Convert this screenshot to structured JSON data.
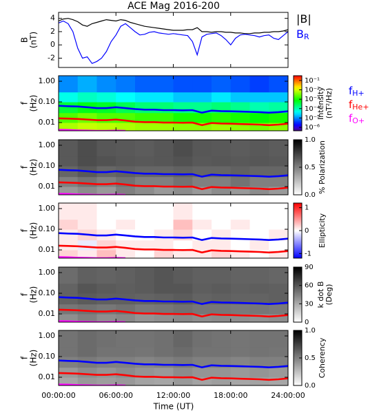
{
  "chart_data": {
    "title": "ACE Mag 2016-200",
    "xlabel": "Time (UT)",
    "xlim": [
      0,
      24
    ],
    "xticks": [
      {
        "value": 0,
        "label": "00:00:00"
      },
      {
        "value": 6,
        "label": "06:00:00"
      },
      {
        "value": 12,
        "label": "12:00:00"
      },
      {
        "value": 18,
        "label": "18:00:00"
      },
      {
        "value": 24,
        "label": "24:00:00"
      }
    ],
    "freq_lines": {
      "x": [
        0,
        1,
        2,
        3,
        4,
        5,
        6,
        7,
        8,
        9,
        10,
        11,
        12,
        13,
        14,
        15,
        16,
        17,
        18,
        19,
        20,
        21,
        22,
        23,
        24
      ],
      "series": [
        {
          "name": "f",
          "subscript": "H+",
          "color": "#0000ff",
          "values": [
            0.065,
            0.062,
            0.06,
            0.055,
            0.05,
            0.05,
            0.055,
            0.05,
            0.045,
            0.042,
            0.042,
            0.04,
            0.04,
            0.039,
            0.04,
            0.03,
            0.038,
            0.036,
            0.035,
            0.034,
            0.033,
            0.032,
            0.03,
            0.032,
            0.035
          ]
        },
        {
          "name": "f",
          "subscript": "He+",
          "color": "#ff0000",
          "values": [
            0.016,
            0.0155,
            0.015,
            0.014,
            0.013,
            0.013,
            0.014,
            0.0125,
            0.011,
            0.0105,
            0.0105,
            0.01,
            0.01,
            0.0098,
            0.01,
            0.0075,
            0.0095,
            0.009,
            0.0088,
            0.0085,
            0.0082,
            0.008,
            0.0075,
            0.008,
            0.0088
          ]
        },
        {
          "name": "f",
          "subscript": "O+",
          "color": "#ff00ff",
          "values": [
            0.0045,
            0.0044,
            0.0042,
            0.0041,
            0.004,
            0.004,
            0.0041,
            0.004,
            null,
            null,
            null,
            null,
            null,
            null,
            null,
            null,
            null,
            null,
            null,
            null,
            null,
            null,
            null,
            null,
            null
          ]
        }
      ]
    },
    "panels": [
      {
        "type": "line",
        "ylabel": [
          "B",
          "(nT)"
        ],
        "ylim": [
          -3.4,
          4.9
        ],
        "yticks": [
          -2,
          0,
          2,
          4
        ],
        "x": [
          0,
          0.5,
          1,
          1.5,
          2,
          2.5,
          3,
          3.5,
          4,
          4.5,
          5,
          5.5,
          6,
          6.5,
          7,
          7.5,
          8,
          8.5,
          9,
          9.5,
          10,
          10.5,
          11,
          11.5,
          12,
          12.5,
          13,
          13.5,
          14,
          14.5,
          15,
          15.5,
          16,
          16.5,
          17,
          17.5,
          18,
          18.5,
          19,
          19.5,
          20,
          20.5,
          21,
          21.5,
          22,
          22.5,
          23,
          23.5,
          24
        ],
        "series": [
          {
            "name": "|B|",
            "color": "#000000",
            "values": [
              3.6,
              3.9,
              4.0,
              3.8,
              3.5,
              3.0,
              2.8,
              3.2,
              3.4,
              3.6,
              3.8,
              3.7,
              3.6,
              3.8,
              3.7,
              3.4,
              3.2,
              3.0,
              2.8,
              2.7,
              2.6,
              2.5,
              2.4,
              2.3,
              2.2,
              2.2,
              2.2,
              2.3,
              2.3,
              2.6,
              2.0,
              2.0,
              1.9,
              2.0,
              2.0,
              1.9,
              1.9,
              1.8,
              1.8,
              1.7,
              1.7,
              1.8,
              1.8,
              1.9,
              1.9,
              2.0,
              2.0,
              2.1,
              2.3
            ]
          },
          {
            "name": "B",
            "subscript": "R",
            "color": "#0000ff",
            "values": [
              3.3,
              3.6,
              3.2,
              2.0,
              -0.5,
              -2.0,
              -1.8,
              -2.8,
              -2.5,
              -2.0,
              -1.0,
              0.5,
              1.5,
              2.8,
              3.2,
              2.6,
              2.0,
              1.5,
              1.6,
              1.9,
              2.0,
              1.8,
              1.7,
              1.6,
              1.7,
              1.6,
              1.5,
              1.4,
              0.5,
              -1.5,
              1.2,
              1.6,
              1.7,
              1.8,
              1.4,
              0.8,
              0.0,
              1.0,
              1.5,
              1.6,
              1.5,
              1.4,
              1.2,
              1.4,
              1.5,
              1.0,
              0.8,
              1.4,
              2.0
            ]
          }
        ]
      },
      {
        "type": "spectrogram",
        "ylabel": [
          "f",
          "(Hz)"
        ],
        "ylim": [
          0.004,
          1.85
        ],
        "log_y": true,
        "yticks": [
          0.01,
          {
            "value": 0.1,
            "label": "0.10"
          },
          {
            "value": 1,
            "label": "1.00"
          }
        ],
        "time_bins": [
          0,
          2,
          4,
          6,
          8,
          10,
          12,
          14,
          16,
          18,
          20,
          22,
          24
        ],
        "freq_bins": [
          0.004,
          0.01,
          0.03,
          0.1,
          0.3,
          1.85
        ],
        "colormap": "rainbow",
        "log_z": true,
        "zlim": [
          4.3e-07,
          0.32
        ],
        "zlabel": [
          "Intensity",
          "(nT²/Hz)"
        ],
        "zticks": [
          {
            "value": 1e-06,
            "label": "10⁻⁶"
          },
          {
            "value": 1e-05,
            "label": "10⁻⁵"
          },
          {
            "value": 0.0001,
            "label": "10⁻⁴"
          },
          {
            "value": 0.001,
            "label": "10⁻³"
          },
          {
            "value": 0.01,
            "label": "10⁻²"
          },
          {
            "value": 0.1,
            "label": "10⁻¹"
          }
        ],
        "show_legend": true,
        "z": [
          [
            0.006,
            0.008,
            0.007,
            0.006,
            0.005,
            0.005,
            0.004,
            0.004,
            0.005,
            0.004,
            0.003,
            0.004
          ],
          [
            0.002,
            0.003,
            0.002,
            0.002,
            0.0015,
            0.0015,
            0.001,
            0.001,
            0.0012,
            0.001,
            0.0008,
            0.001
          ],
          [
            0.0004,
            0.0006,
            0.0005,
            0.0003,
            0.0002,
            0.0002,
            0.00015,
            0.00015,
            0.0002,
            0.00015,
            0.0001,
            0.00012
          ],
          [
            5e-05,
            8e-05,
            6e-05,
            4e-05,
            3e-05,
            3e-05,
            2e-05,
            2e-05,
            3e-05,
            2e-05,
            2e-05,
            2e-05
          ],
          [
            1e-05,
            1.5e-05,
            1e-05,
            8e-06,
            6e-06,
            6e-06,
            5e-06,
            5e-06,
            6e-06,
            5e-06,
            4e-06,
            5e-06
          ]
        ]
      },
      {
        "type": "spectrogram",
        "ylabel": [
          "f",
          "(Hz)"
        ],
        "ylim": [
          0.004,
          1.85
        ],
        "log_y": true,
        "yticks": [
          0.01,
          {
            "value": 0.1,
            "label": "0.10"
          },
          {
            "value": 1,
            "label": "1.00"
          }
        ],
        "time_bins": [
          0,
          2,
          4,
          6,
          8,
          10,
          12,
          14,
          16,
          18,
          20,
          22,
          24
        ],
        "freq_bins": [
          0.004,
          0.01,
          0.03,
          0.1,
          0.3,
          1.85
        ],
        "colormap": "gray",
        "zlim": [
          0,
          1
        ],
        "zlabel": [
          "% Polarization"
        ],
        "zticks": [
          {
            "value": 0,
            "label": "0.0"
          },
          0.5,
          {
            "value": 1,
            "label": "1.0"
          }
        ],
        "z": [
          [
            0.4,
            0.45,
            0.4,
            0.5,
            0.45,
            0.4,
            0.45,
            0.4,
            0.45,
            0.4,
            0.45,
            0.4
          ],
          [
            0.5,
            0.55,
            0.5,
            0.55,
            0.5,
            0.5,
            0.55,
            0.5,
            0.5,
            0.55,
            0.5,
            0.5
          ],
          [
            0.6,
            0.65,
            0.6,
            0.62,
            0.6,
            0.6,
            0.62,
            0.6,
            0.6,
            0.62,
            0.6,
            0.6
          ],
          [
            0.65,
            0.7,
            0.68,
            0.66,
            0.65,
            0.66,
            0.68,
            0.65,
            0.66,
            0.65,
            0.66,
            0.65
          ],
          [
            0.65,
            0.7,
            0.66,
            0.65,
            0.64,
            0.66,
            0.7,
            0.66,
            0.65,
            0.64,
            0.65,
            0.64
          ]
        ]
      },
      {
        "type": "spectrogram",
        "ylabel": [
          "f",
          "(Hz)"
        ],
        "ylim": [
          0.004,
          1.85
        ],
        "log_y": true,
        "yticks": [
          0.01,
          {
            "value": 0.1,
            "label": "0.10"
          },
          {
            "value": 1,
            "label": "1.00"
          }
        ],
        "time_bins": [
          0,
          2,
          4,
          6,
          8,
          10,
          12,
          14,
          16,
          18,
          20,
          22,
          24
        ],
        "freq_bins": [
          0.004,
          0.01,
          0.03,
          0.1,
          0.3,
          1.85
        ],
        "colormap": "bwr",
        "zlim": [
          -1.2,
          1.2
        ],
        "zlabel": [
          "Ellipticity"
        ],
        "zticks": [
          -1,
          0,
          1
        ],
        "z": [
          [
            0.2,
            0.1,
            0.3,
            0.1,
            0.0,
            0.2,
            0.1,
            0.1,
            0.2,
            0.1,
            0.0,
            0.1
          ],
          [
            0.1,
            -0.1,
            0.2,
            0.1,
            0.1,
            0.1,
            0.0,
            0.1,
            0.1,
            0.0,
            0.1,
            0.0
          ],
          [
            0.1,
            0.2,
            0.1,
            0.0,
            0.0,
            0.1,
            0.2,
            0.0,
            0.1,
            0.0,
            0.0,
            0.1
          ],
          [
            0.2,
            0.1,
            0.0,
            0.1,
            0.0,
            0.0,
            0.3,
            0.1,
            0.0,
            0.1,
            0.0,
            0.0
          ],
          [
            0.1,
            0.1,
            0.0,
            0.0,
            0.0,
            0.0,
            0.1,
            0.0,
            0.0,
            0.0,
            0.0,
            0.0
          ]
        ]
      },
      {
        "type": "spectrogram",
        "ylabel": [
          "f",
          "(Hz)"
        ],
        "ylim": [
          0.004,
          1.85
        ],
        "log_y": true,
        "yticks": [
          0.01,
          {
            "value": 0.1,
            "label": "0.10"
          },
          {
            "value": 1,
            "label": "1.00"
          }
        ],
        "time_bins": [
          0,
          2,
          4,
          6,
          8,
          10,
          12,
          14,
          16,
          18,
          20,
          22,
          24
        ],
        "freq_bins": [
          0.004,
          0.01,
          0.03,
          0.1,
          0.3,
          1.85
        ],
        "colormap": "gray",
        "zlim": [
          0,
          90
        ],
        "zlabel": [
          "k dot B",
          "(Deg)"
        ],
        "zticks": [
          0,
          30,
          60,
          90
        ],
        "z": [
          [
            40,
            45,
            40,
            42,
            38,
            40,
            42,
            40,
            41,
            40,
            39,
            40
          ],
          [
            48,
            50,
            48,
            50,
            47,
            48,
            50,
            48,
            48,
            47,
            48,
            47
          ],
          [
            55,
            58,
            56,
            56,
            55,
            56,
            58,
            55,
            56,
            55,
            55,
            56
          ],
          [
            55,
            60,
            58,
            57,
            58,
            60,
            60,
            57,
            58,
            56,
            57,
            56
          ],
          [
            52,
            56,
            55,
            56,
            58,
            60,
            58,
            56,
            56,
            55,
            55,
            54
          ]
        ]
      },
      {
        "type": "spectrogram",
        "ylabel": [
          "f",
          "(Hz)"
        ],
        "ylim": [
          0.004,
          1.85
        ],
        "log_y": true,
        "yticks": [
          0.01,
          {
            "value": 0.1,
            "label": "0.10"
          },
          {
            "value": 1,
            "label": "1.00"
          }
        ],
        "time_bins": [
          0,
          2,
          4,
          6,
          8,
          10,
          12,
          14,
          16,
          18,
          20,
          22,
          24
        ],
        "freq_bins": [
          0.004,
          0.01,
          0.03,
          0.1,
          0.3,
          1.85
        ],
        "colormap": "gray",
        "zlim": [
          0,
          1
        ],
        "zlabel": [
          "Coherency"
        ],
        "zticks": [
          {
            "value": 0,
            "label": "0.0"
          },
          0.5,
          {
            "value": 1,
            "label": "1.0"
          }
        ],
        "z": [
          [
            0.35,
            0.4,
            0.38,
            0.4,
            0.36,
            0.35,
            0.4,
            0.36,
            0.38,
            0.35,
            0.36,
            0.35
          ],
          [
            0.4,
            0.45,
            0.42,
            0.45,
            0.42,
            0.4,
            0.45,
            0.42,
            0.42,
            0.4,
            0.42,
            0.4
          ],
          [
            0.5,
            0.52,
            0.5,
            0.5,
            0.48,
            0.5,
            0.52,
            0.5,
            0.5,
            0.48,
            0.5,
            0.5
          ],
          [
            0.55,
            0.58,
            0.55,
            0.55,
            0.54,
            0.56,
            0.58,
            0.55,
            0.55,
            0.54,
            0.55,
            0.54
          ],
          [
            0.55,
            0.58,
            0.56,
            0.55,
            0.55,
            0.56,
            0.6,
            0.56,
            0.55,
            0.54,
            0.55,
            0.55
          ]
        ]
      }
    ]
  }
}
